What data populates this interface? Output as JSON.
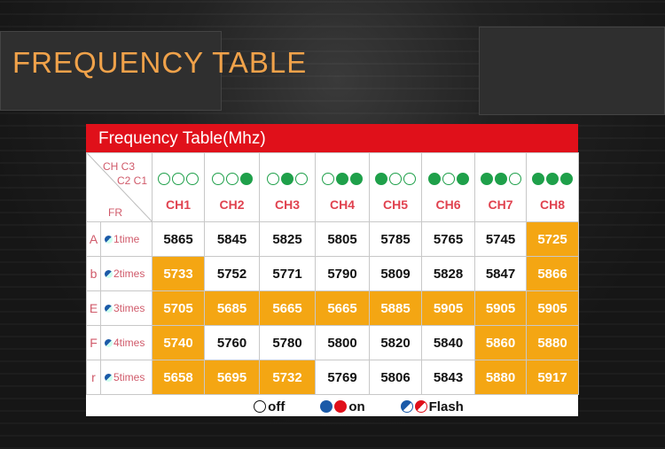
{
  "page_title": "FREQUENCY TABLE",
  "table": {
    "title": "Frequency Table(Mhz)",
    "corner": {
      "top": "CH C3",
      "middle": "C2 C1",
      "bottom": "FR"
    },
    "channels": [
      {
        "label": "CH1",
        "dots": [
          0,
          0,
          0
        ]
      },
      {
        "label": "CH2",
        "dots": [
          0,
          0,
          1
        ]
      },
      {
        "label": "CH3",
        "dots": [
          0,
          1,
          0
        ]
      },
      {
        "label": "CH4",
        "dots": [
          0,
          1,
          1
        ]
      },
      {
        "label": "CH5",
        "dots": [
          1,
          0,
          0
        ]
      },
      {
        "label": "CH6",
        "dots": [
          1,
          0,
          1
        ]
      },
      {
        "label": "CH7",
        "dots": [
          1,
          1,
          0
        ]
      },
      {
        "label": "CH8",
        "dots": [
          1,
          1,
          1
        ]
      }
    ],
    "rows": [
      {
        "band": "A",
        "mode": "1time",
        "values": [
          "5865",
          "5845",
          "5825",
          "5805",
          "5785",
          "5765",
          "5745",
          "5725"
        ],
        "highlight": [
          0,
          0,
          0,
          0,
          0,
          0,
          0,
          1
        ]
      },
      {
        "band": "b",
        "mode": "2times",
        "values": [
          "5733",
          "5752",
          "5771",
          "5790",
          "5809",
          "5828",
          "5847",
          "5866"
        ],
        "highlight": [
          1,
          0,
          0,
          0,
          0,
          0,
          0,
          1
        ]
      },
      {
        "band": "E",
        "mode": "3times",
        "values": [
          "5705",
          "5685",
          "5665",
          "5665",
          "5885",
          "5905",
          "5905",
          "5905"
        ],
        "highlight": [
          1,
          1,
          1,
          1,
          1,
          1,
          1,
          1
        ]
      },
      {
        "band": "F",
        "mode": "4times",
        "values": [
          "5740",
          "5760",
          "5780",
          "5800",
          "5820",
          "5840",
          "5860",
          "5880"
        ],
        "highlight": [
          1,
          0,
          0,
          0,
          0,
          0,
          1,
          1
        ]
      },
      {
        "band": "r",
        "mode": "5times",
        "values": [
          "5658",
          "5695",
          "5732",
          "5769",
          "5806",
          "5843",
          "5880",
          "5917"
        ],
        "highlight": [
          1,
          1,
          1,
          0,
          0,
          0,
          1,
          1
        ]
      }
    ],
    "legend": {
      "off": "off",
      "on": "on",
      "flash": "Flash"
    }
  },
  "colors": {
    "header": "#e0101a",
    "highlight": "#f4a613",
    "led": "#1fa04a",
    "title": "#f0a24a"
  }
}
